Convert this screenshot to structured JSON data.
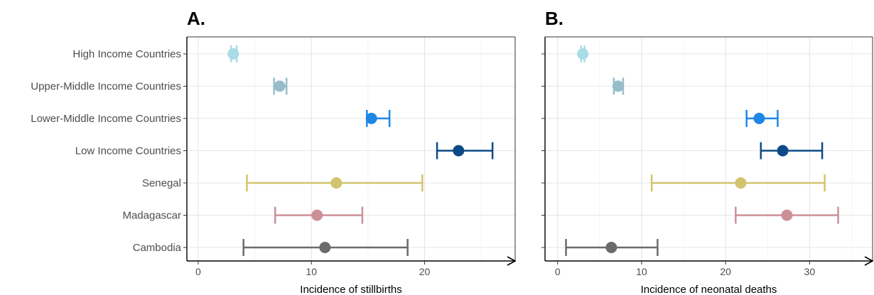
{
  "chart_data": {
    "type": "forest",
    "categories": [
      "High Income Countries",
      "Upper-Middle Income Countries",
      "Lower-Middle Income Countries",
      "Low Income Countries",
      "Senegal",
      "Madagascar",
      "Cambodia"
    ],
    "colors": [
      "#a8dce6",
      "#98bdc8",
      "#1f86e6",
      "#0c4a86",
      "#d2c46e",
      "#cc8f98",
      "#6b6b6b"
    ],
    "panels": [
      {
        "label": "A.",
        "xlabel": "Incidence of stillbirths",
        "xlim": [
          -1,
          28
        ],
        "xticks": [
          0,
          10,
          20
        ],
        "points": [
          {
            "category": "High Income Countries",
            "value": 3.1,
            "lower": 2.9,
            "upper": 3.4
          },
          {
            "category": "Upper-Middle Income Countries",
            "value": 7.2,
            "lower": 6.7,
            "upper": 7.8
          },
          {
            "category": "Lower-Middle Income Countries",
            "value": 15.3,
            "lower": 14.9,
            "upper": 16.9
          },
          {
            "category": "Low Income Countries",
            "value": 23.0,
            "lower": 21.1,
            "upper": 26.0
          },
          {
            "category": "Senegal",
            "value": 12.2,
            "lower": 4.3,
            "upper": 19.8
          },
          {
            "category": "Madagascar",
            "value": 10.5,
            "lower": 6.8,
            "upper": 14.5
          },
          {
            "category": "Cambodia",
            "value": 11.2,
            "lower": 4.0,
            "upper": 18.5
          }
        ]
      },
      {
        "label": "B.",
        "xlabel": "Incidence of neonatal deaths",
        "xlim": [
          -1.5,
          37.5
        ],
        "xticks": [
          0,
          10,
          20,
          30
        ],
        "points": [
          {
            "category": "High Income Countries",
            "value": 3.0,
            "lower": 2.8,
            "upper": 3.2
          },
          {
            "category": "Upper-Middle Income Countries",
            "value": 7.2,
            "lower": 6.7,
            "upper": 7.8
          },
          {
            "category": "Lower-Middle Income Countries",
            "value": 24.0,
            "lower": 22.5,
            "upper": 26.2
          },
          {
            "category": "Low Income Countries",
            "value": 26.8,
            "lower": 24.2,
            "upper": 31.5
          },
          {
            "category": "Senegal",
            "value": 21.8,
            "lower": 11.2,
            "upper": 31.8
          },
          {
            "category": "Madagascar",
            "value": 27.3,
            "lower": 21.2,
            "upper": 33.4
          },
          {
            "category": "Cambodia",
            "value": 6.4,
            "lower": 1.0,
            "upper": 11.9
          }
        ]
      }
    ],
    "grid": true
  }
}
